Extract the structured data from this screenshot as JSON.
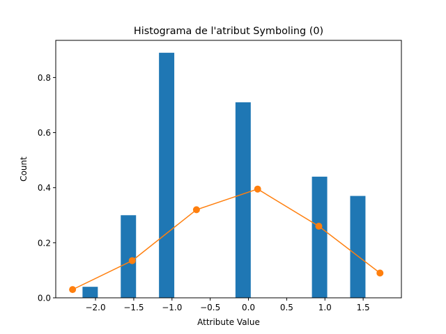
{
  "chart_data": {
    "type": "bar",
    "title": "Histograma de l'atribut Symboling (0)",
    "xlabel": "Attribute Value",
    "ylabel": "Count",
    "xlim": [
      -2.52,
      2.0
    ],
    "ylim": [
      0,
      0.935
    ],
    "grid": false,
    "xticks": [
      -2.0,
      -1.5,
      -1.0,
      -0.5,
      0.0,
      0.5,
      1.0,
      1.5
    ],
    "xtick_labels": [
      "−2.0",
      "−1.5",
      "−1.0",
      "−0.5",
      "0.0",
      "0.5",
      "1.0",
      "1.5"
    ],
    "yticks": [
      0.0,
      0.2,
      0.4,
      0.6,
      0.8
    ],
    "ytick_labels": [
      "0.0",
      "0.2",
      "0.4",
      "0.6",
      "0.8"
    ],
    "bars": {
      "color": "#1f77b4",
      "width": 0.2,
      "items": [
        {
          "x": -2.07,
          "value": 0.04
        },
        {
          "x": -1.57,
          "value": 0.3
        },
        {
          "x": -1.07,
          "value": 0.89
        },
        {
          "x": -0.57,
          "value": 0.0
        },
        {
          "x": -0.07,
          "value": 0.71
        },
        {
          "x": 0.43,
          "value": 0.0
        },
        {
          "x": 0.93,
          "value": 0.44
        },
        {
          "x": 1.43,
          "value": 0.37
        }
      ]
    },
    "line": {
      "color": "#ff7f0e",
      "marker": "circle",
      "points": [
        {
          "x": -2.3,
          "y": 0.03
        },
        {
          "x": -1.52,
          "y": 0.135
        },
        {
          "x": -0.68,
          "y": 0.32
        },
        {
          "x": 0.12,
          "y": 0.395
        },
        {
          "x": 0.92,
          "y": 0.26
        },
        {
          "x": 1.72,
          "y": 0.09
        }
      ]
    }
  }
}
